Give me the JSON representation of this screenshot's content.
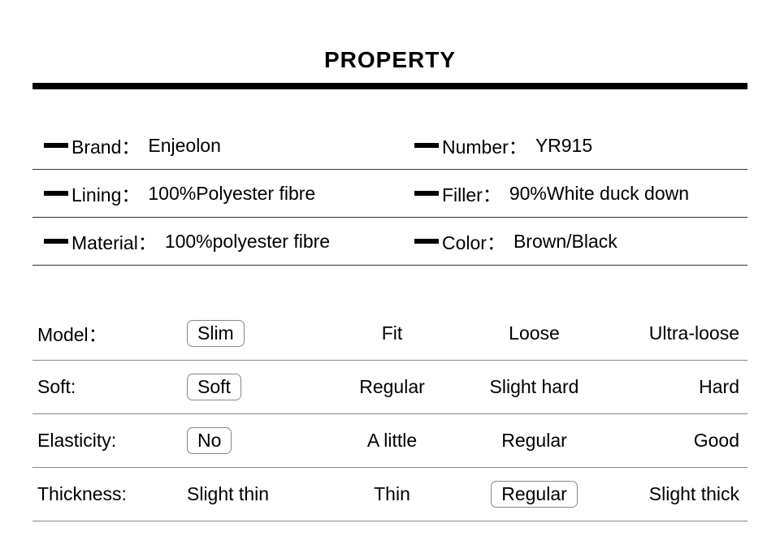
{
  "title": "PROPERTY",
  "colors": {
    "text": "#000000",
    "background": "#ffffff",
    "border_heavy": "#000000",
    "border_light": "#888888",
    "selected_border": "#888888"
  },
  "typography": {
    "title_fontsize": 28,
    "body_fontsize": 23,
    "title_weight": "bold"
  },
  "specs": [
    {
      "left_label": "Brand：",
      "left_value": "Enjeolon",
      "right_label": "Number：",
      "right_value": "YR915"
    },
    {
      "left_label": "Lining：",
      "left_value": "100%Polyester fibre",
      "right_label": "Filler：",
      "right_value": "90%White duck down"
    },
    {
      "left_label": "Material：",
      "left_value": "100%polyester fibre",
      "right_label": "Color：",
      "right_value": "Brown/Black"
    }
  ],
  "attributes": [
    {
      "label": "Model：",
      "options": [
        "Slim",
        "Fit",
        "Loose",
        "Ultra-loose"
      ],
      "selected": 0
    },
    {
      "label": "Soft:",
      "options": [
        "Soft",
        "Regular",
        "Slight hard",
        "Hard"
      ],
      "selected": 0
    },
    {
      "label": "Elasticity:",
      "options": [
        "No",
        "A little",
        "Regular",
        "Good"
      ],
      "selected": 0
    },
    {
      "label": "Thickness:",
      "options": [
        "Slight thin",
        "Thin",
        "Regular",
        "Slight thick"
      ],
      "selected": 2
    }
  ]
}
